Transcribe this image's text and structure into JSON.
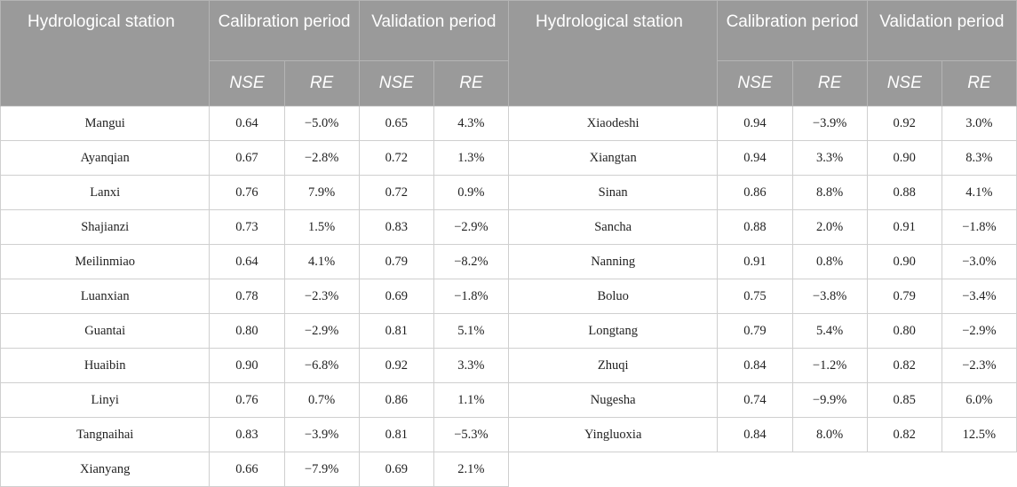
{
  "header": {
    "station_label": "Hydrological station",
    "calibration_label": "Calibration period",
    "validation_label": "Validation period",
    "nse_label": "NSE",
    "re_label": "RE"
  },
  "left": [
    {
      "station": "Mangui",
      "cal_nse": "0.64",
      "cal_re": "−5.0%",
      "val_nse": "0.65",
      "val_re": "4.3%"
    },
    {
      "station": "Ayanqian",
      "cal_nse": "0.67",
      "cal_re": "−2.8%",
      "val_nse": "0.72",
      "val_re": "1.3%"
    },
    {
      "station": "Lanxi",
      "cal_nse": "0.76",
      "cal_re": "7.9%",
      "val_nse": "0.72",
      "val_re": "0.9%"
    },
    {
      "station": "Shajianzi",
      "cal_nse": "0.73",
      "cal_re": "1.5%",
      "val_nse": "0.83",
      "val_re": "−2.9%"
    },
    {
      "station": "Meilinmiao",
      "cal_nse": "0.64",
      "cal_re": "4.1%",
      "val_nse": "0.79",
      "val_re": "−8.2%"
    },
    {
      "station": "Luanxian",
      "cal_nse": "0.78",
      "cal_re": "−2.3%",
      "val_nse": "0.69",
      "val_re": "−1.8%"
    },
    {
      "station": "Guantai",
      "cal_nse": "0.80",
      "cal_re": "−2.9%",
      "val_nse": "0.81",
      "val_re": "5.1%"
    },
    {
      "station": "Huaibin",
      "cal_nse": "0.90",
      "cal_re": "−6.8%",
      "val_nse": "0.92",
      "val_re": "3.3%"
    },
    {
      "station": "Linyi",
      "cal_nse": "0.76",
      "cal_re": "0.7%",
      "val_nse": "0.86",
      "val_re": "1.1%"
    },
    {
      "station": "Tangnaihai",
      "cal_nse": "0.83",
      "cal_re": "−3.9%",
      "val_nse": "0.81",
      "val_re": "−5.3%"
    },
    {
      "station": "Xianyang",
      "cal_nse": "0.66",
      "cal_re": "−7.9%",
      "val_nse": "0.69",
      "val_re": "2.1%"
    }
  ],
  "right": [
    {
      "station": "Xiaodeshi",
      "cal_nse": "0.94",
      "cal_re": "−3.9%",
      "val_nse": "0.92",
      "val_re": "3.0%"
    },
    {
      "station": "Xiangtan",
      "cal_nse": "0.94",
      "cal_re": "3.3%",
      "val_nse": "0.90",
      "val_re": "8.3%"
    },
    {
      "station": "Sinan",
      "cal_nse": "0.86",
      "cal_re": "8.8%",
      "val_nse": "0.88",
      "val_re": "4.1%"
    },
    {
      "station": "Sancha",
      "cal_nse": "0.88",
      "cal_re": "2.0%",
      "val_nse": "0.91",
      "val_re": "−1.8%"
    },
    {
      "station": "Nanning",
      "cal_nse": "0.91",
      "cal_re": "0.8%",
      "val_nse": "0.90",
      "val_re": "−3.0%"
    },
    {
      "station": "Boluo",
      "cal_nse": "0.75",
      "cal_re": "−3.8%",
      "val_nse": "0.79",
      "val_re": "−3.4%"
    },
    {
      "station": "Longtang",
      "cal_nse": "0.79",
      "cal_re": "5.4%",
      "val_nse": "0.80",
      "val_re": "−2.9%"
    },
    {
      "station": "Zhuqi",
      "cal_nse": "0.84",
      "cal_re": "−1.2%",
      "val_nse": "0.82",
      "val_re": "−2.3%"
    },
    {
      "station": "Nugesha",
      "cal_nse": "0.74",
      "cal_re": "−9.9%",
      "val_nse": "0.85",
      "val_re": "6.0%"
    },
    {
      "station": "Yingluoxia",
      "cal_nse": "0.84",
      "cal_re": "8.0%",
      "val_nse": "0.82",
      "val_re": "12.5%"
    }
  ]
}
